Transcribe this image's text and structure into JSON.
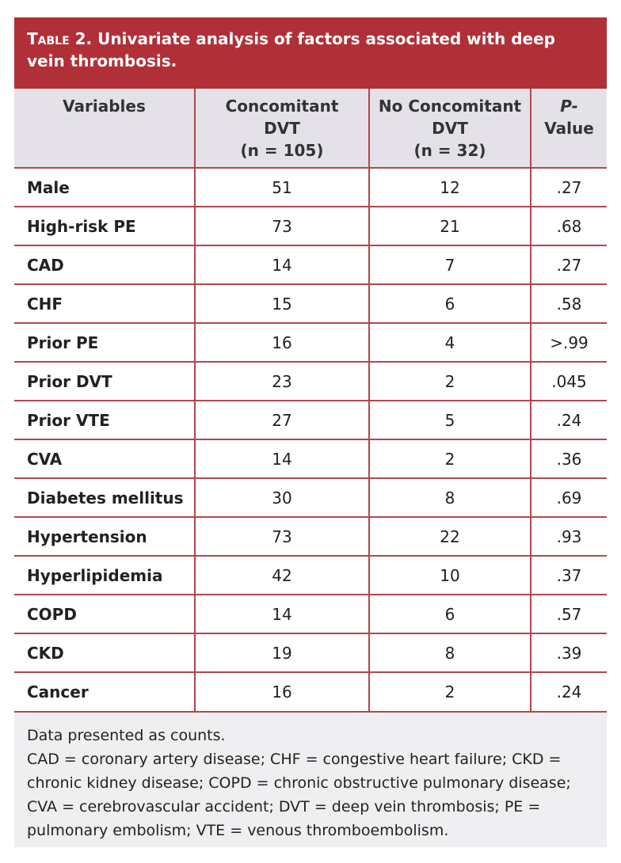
{
  "table": {
    "title_label": "Table 2.",
    "title": "Univariate analysis of factors associated with deep vein thrombosis.",
    "headers": [
      [
        "Variables"
      ],
      [
        "Concomitant",
        "DVT",
        "(n = 105)"
      ],
      [
        "No Concomitant",
        "DVT",
        "(n = 32)"
      ],
      [
        "P-",
        "Value"
      ]
    ],
    "rows": [
      [
        "Male",
        51,
        12,
        ".27"
      ],
      [
        "High-risk PE",
        73,
        21,
        ".68"
      ],
      [
        "CAD",
        14,
        7,
        ".27"
      ],
      [
        "CHF",
        15,
        6,
        ".58"
      ],
      [
        "Prior PE",
        16,
        4,
        ">.99"
      ],
      [
        "Prior DVT",
        23,
        2,
        ".045"
      ],
      [
        "Prior VTE",
        27,
        5,
        ".24"
      ],
      [
        "CVA",
        14,
        2,
        ".36"
      ],
      [
        "Diabetes mellitus",
        30,
        8,
        ".69"
      ],
      [
        "Hypertension",
        73,
        22,
        ".93"
      ],
      [
        "Hyperlipidemia",
        42,
        10,
        ".37"
      ],
      [
        "COPD",
        14,
        6,
        ".57"
      ],
      [
        "CKD",
        19,
        8,
        ".39"
      ],
      [
        "Cancer",
        16,
        2,
        ".24"
      ]
    ],
    "notes": [
      "Data presented as counts.",
      "CAD = coronary artery disease; CHF = congestive heart failure; CKD = chronic kidney disease; COPD = chronic obstructive pulmonary disease; CVA = cerebrovascular accident; DVT = deep vein thrombosis; PE = pulmonary embolism; VTE = venous thromboembolism."
    ]
  }
}
